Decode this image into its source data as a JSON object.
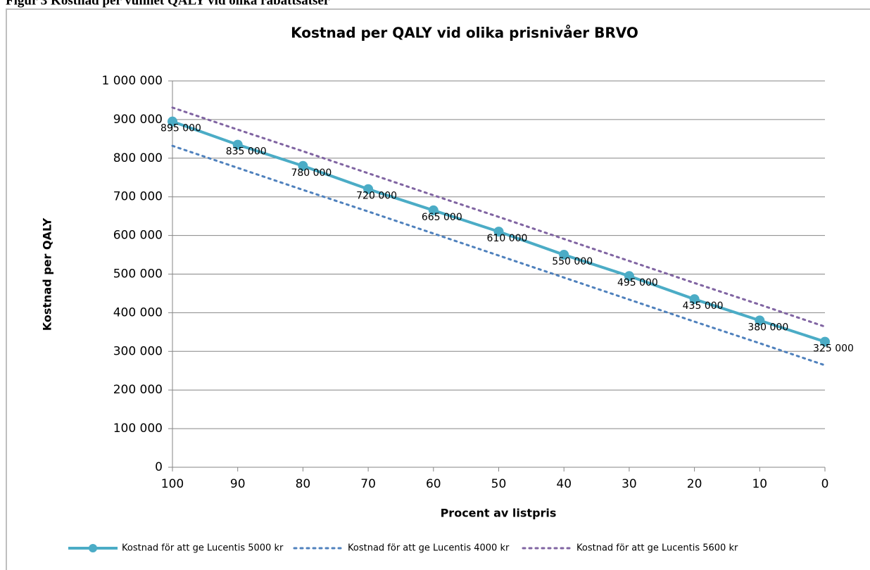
{
  "caption": "Figur 3 Kostnad per vunnet QALY vid olika rabattsatser",
  "chart_data": {
    "type": "line",
    "title": "Kostnad per QALY vid olika prisnivåer BRVO",
    "xlabel": "Procent av listpris",
    "ylabel": "Kostnad per QALY",
    "categories": [
      "100",
      "90",
      "80",
      "70",
      "60",
      "50",
      "40",
      "30",
      "20",
      "10",
      "0"
    ],
    "ylim": [
      0,
      1000000
    ],
    "yticks": [
      0,
      {
        "value": 100000,
        "label": "100 000"
      },
      {
        "value": 200000,
        "label": "200 000"
      },
      {
        "value": 300000,
        "label": "300 000"
      },
      {
        "value": 400000,
        "label": "400 000"
      },
      {
        "value": 500000,
        "label": "500 000"
      },
      {
        "value": 600000,
        "label": "600 000"
      },
      {
        "value": 700000,
        "label": "700 000"
      },
      {
        "value": 800000,
        "label": "800 000"
      },
      {
        "value": 900000,
        "label": "900 000"
      },
      {
        "value": 1000000,
        "label": "1 000 000"
      }
    ],
    "grid": true,
    "legend": "bottom",
    "series": [
      {
        "name": "Kostnad för att ge Lucentis 5000 kr",
        "color": "#4bacc6",
        "style": "solid",
        "markers": true,
        "values": [
          895000,
          835000,
          780000,
          720000,
          665000,
          610000,
          550000,
          495000,
          435000,
          380000,
          325000
        ],
        "value_labels": [
          "895 000",
          "835 000",
          "780 000",
          "720 000",
          "665 000",
          "610 000",
          "550 000",
          "495 000",
          "435 000",
          "380 000",
          "325 000"
        ]
      },
      {
        "name": "Kostnad för att ge Lucentis 4000 kr",
        "color": "#4f81bd",
        "style": "dotted",
        "markers": false,
        "values": [
          832000,
          775000,
          718000,
          662000,
          605000,
          548000,
          491000,
          434000,
          377000,
          321000,
          264000
        ]
      },
      {
        "name": "Kostnad för att ge Lucentis 5600 kr",
        "color": "#8064a2",
        "style": "dotted",
        "markers": false,
        "values": [
          931000,
          874000,
          818000,
          761000,
          704000,
          648000,
          591000,
          534000,
          477000,
          421000,
          364000
        ]
      }
    ]
  }
}
